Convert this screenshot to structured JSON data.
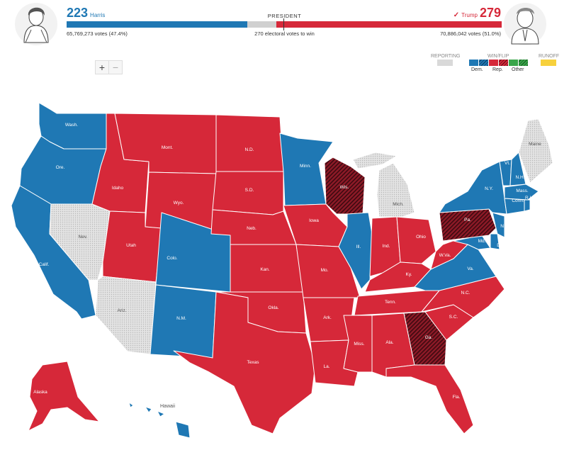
{
  "header": {
    "harris": {
      "ev": "223",
      "name": "Harris",
      "votes": "65,769,273 votes (47.4%)"
    },
    "trump": {
      "ev": "279",
      "name": "Trump",
      "check": "✓",
      "votes": "70,886,042 votes (51.0%)"
    },
    "race_label": "PRESIDENT",
    "to_win": "270 electoral votes to win",
    "dem_ev_fraction": 0.4145,
    "rep_ev_fraction": 0.5186
  },
  "zoom": {
    "plus": "+",
    "minus": "−"
  },
  "legend": {
    "reporting": "REPORTING",
    "win_flip": "WIN/FLIP",
    "runoff": "RUNOFF",
    "dem": "Dem.",
    "rep": "Rep.",
    "other": "Other"
  },
  "colors": {
    "dem": "#1f78b4",
    "rep": "#d62839",
    "flip_rep": "#7a1420",
    "reporting": "#d9d9d9",
    "other": "#3aa64a",
    "runoff": "#f7d13d"
  },
  "map": {
    "inset_label": "Hawaii",
    "labels": [
      "Wash.",
      "Ore.",
      "Calif.",
      "Nev.",
      "Idaho",
      "Mont.",
      "Wyo.",
      "Utah",
      "Ariz.",
      "Colo.",
      "N.M.",
      "N.D.",
      "S.D.",
      "Neb.",
      "Kan.",
      "Okla.",
      "Texas",
      "Minn.",
      "Iowa",
      "Mo.",
      "Ark.",
      "La.",
      "Wis.",
      "Ill.",
      "Miss.",
      "Mich.",
      "Ind.",
      "Ky.",
      "Tenn.",
      "Ala.",
      "Ga.",
      "Fla.",
      "Ohio",
      "W.Va.",
      "Va.",
      "N.C.",
      "S.C.",
      "Pa.",
      "N.Y.",
      "Vt.",
      "N.H.",
      "Maine",
      "Mass.",
      "Conn.",
      "R.I.",
      "N.J.",
      "Del.",
      "Md.",
      "Alaska"
    ]
  }
}
